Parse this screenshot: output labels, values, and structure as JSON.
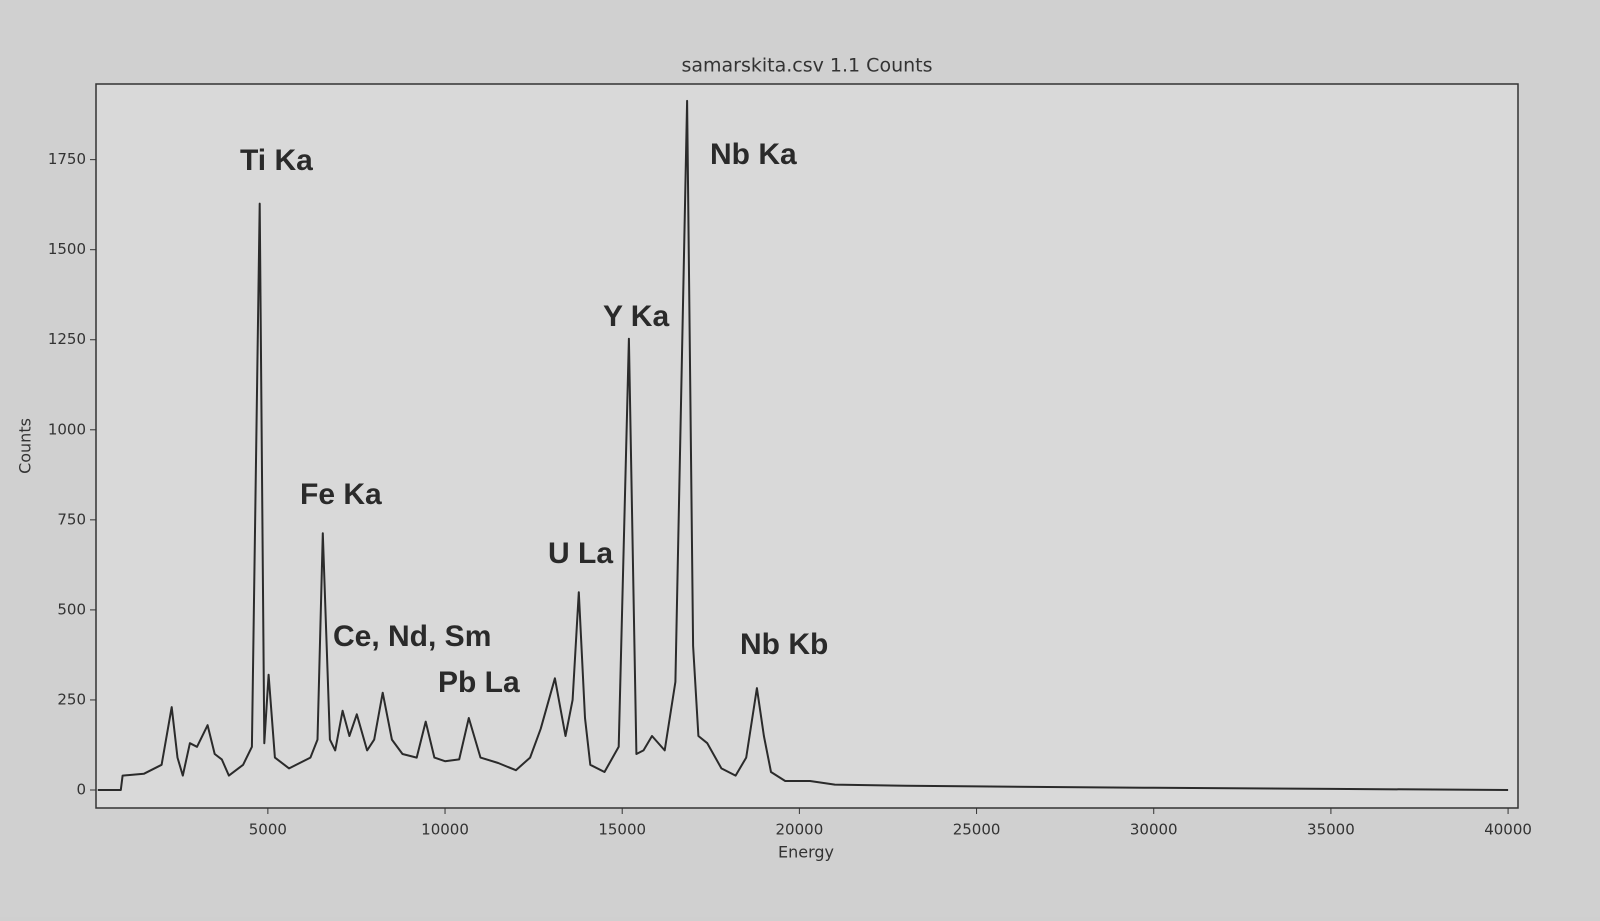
{
  "chart_data": {
    "type": "line",
    "title": "samarskita.csv 1.1 Counts",
    "x_label": "Energy",
    "y_label": "Counts",
    "annotations": [
      "Ti Ka",
      "Fe Ka",
      "Ce, Nd, Sm",
      "Pb La",
      "U La",
      "Y Ka",
      "Nb Ka",
      "Nb Kb"
    ],
    "xlim": [
      150,
      40280
    ],
    "ylim": [
      -50,
      1960
    ],
    "xticks": [
      5000,
      10000,
      15000,
      20000,
      25000,
      30000,
      35000,
      40000
    ],
    "yticks": [
      0,
      250,
      500,
      750,
      1000,
      1250,
      1500,
      1750
    ],
    "grid": false,
    "series": [
      {
        "name": "Counts",
        "color": "#2b2b2b",
        "x": [
          200,
          850,
          900,
          1500,
          2000,
          2287,
          2450,
          2600,
          2800,
          3000,
          3300,
          3500,
          3700,
          3900,
          4300,
          4550,
          4770,
          4900,
          5020,
          5200,
          5600,
          6200,
          6400,
          6550,
          6750,
          6900,
          7110,
          7300,
          7510,
          7800,
          8000,
          8240,
          8500,
          8800,
          9200,
          9455,
          9700,
          10000,
          10400,
          10670,
          11000,
          11500,
          12000,
          12400,
          12700,
          13100,
          13400,
          13600,
          13775,
          13950,
          14100,
          14500,
          14900,
          15190,
          15400,
          15600,
          15840,
          16200,
          16500,
          16830,
          17000,
          17150,
          17400,
          17800,
          18200,
          18500,
          18800,
          19000,
          19200,
          19600,
          20300,
          21000,
          23000,
          25000,
          30000,
          35000,
          40000
        ],
        "y": [
          0,
          0,
          40,
          45,
          70,
          230,
          90,
          40,
          130,
          120,
          180,
          100,
          85,
          40,
          70,
          120,
          1628,
          130,
          320,
          90,
          60,
          90,
          140,
          713,
          140,
          110,
          220,
          150,
          210,
          110,
          140,
          270,
          140,
          100,
          90,
          190,
          90,
          80,
          85,
          200,
          90,
          75,
          55,
          90,
          170,
          310,
          150,
          250,
          549,
          200,
          70,
          50,
          120,
          1253,
          100,
          110,
          150,
          110,
          300,
          1913,
          400,
          150,
          130,
          60,
          40,
          90,
          283,
          150,
          50,
          25,
          25,
          15,
          12,
          10,
          6,
          3,
          0
        ]
      }
    ]
  }
}
